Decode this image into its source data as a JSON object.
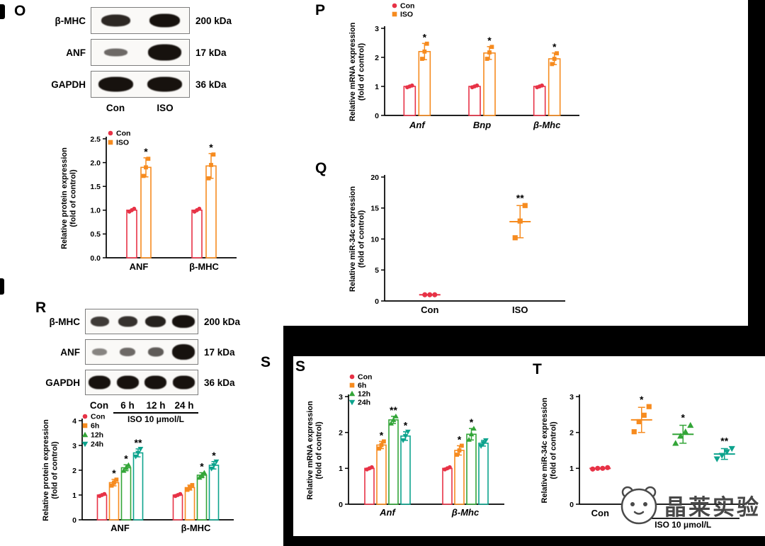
{
  "colors": {
    "con": "#e73246",
    "iso": "#f68b1f",
    "h12": "#33a538",
    "h24": "#0da38d"
  },
  "panels": {
    "O": {
      "label": "O"
    },
    "P": {
      "label": "P"
    },
    "Q": {
      "label": "Q"
    },
    "R": {
      "label": "R"
    },
    "S_outer": {
      "label": "S"
    },
    "S": {
      "label": "S"
    },
    "T": {
      "label": "T"
    }
  },
  "watermark": {
    "text": "晶莱实验"
  },
  "blots": {
    "O": {
      "lanes": [
        "Con",
        "ISO"
      ],
      "rows": [
        {
          "protein": "β-MHC",
          "kda": "200 kDa",
          "bands": [
            {
              "w": 0.6,
              "h": 0.5,
              "d": 0.9
            },
            {
              "w": 0.62,
              "h": 0.55,
              "d": 1.0
            }
          ]
        },
        {
          "protein": "ANF",
          "kda": "17 kDa",
          "bands": [
            {
              "w": 0.48,
              "h": 0.32,
              "d": 0.62
            },
            {
              "w": 0.68,
              "h": 0.66,
              "d": 1.0
            }
          ]
        },
        {
          "protein": "GAPDH",
          "kda": "36 kDa",
          "bands": [
            {
              "w": 0.72,
              "h": 0.62,
              "d": 1.0
            },
            {
              "w": 0.72,
              "h": 0.62,
              "d": 1.0
            }
          ]
        }
      ]
    },
    "R": {
      "lanes": [
        "Con",
        "6 h",
        "12 h",
        "24 h"
      ],
      "treatment": "ISO 10 μmol/L",
      "rows": [
        {
          "protein": "β-MHC",
          "kda": "200 kDa",
          "bands": [
            {
              "w": 0.66,
              "h": 0.42,
              "d": 0.82
            },
            {
              "w": 0.68,
              "h": 0.45,
              "d": 0.86
            },
            {
              "w": 0.74,
              "h": 0.5,
              "d": 0.93
            },
            {
              "w": 0.8,
              "h": 0.56,
              "d": 1.0
            }
          ]
        },
        {
          "protein": "ANF",
          "kda": "17 kDa",
          "bands": [
            {
              "w": 0.52,
              "h": 0.3,
              "d": 0.5
            },
            {
              "w": 0.56,
              "h": 0.36,
              "d": 0.62
            },
            {
              "w": 0.56,
              "h": 0.4,
              "d": 0.68
            },
            {
              "w": 0.82,
              "h": 0.68,
              "d": 1.0
            }
          ]
        },
        {
          "protein": "GAPDH",
          "kda": "36 kDa",
          "bands": [
            {
              "w": 0.78,
              "h": 0.58,
              "d": 1.0
            },
            {
              "w": 0.78,
              "h": 0.58,
              "d": 1.0
            },
            {
              "w": 0.78,
              "h": 0.58,
              "d": 1.0
            },
            {
              "w": 0.78,
              "h": 0.58,
              "d": 1.0
            }
          ]
        }
      ]
    }
  },
  "chart_data": [
    {
      "id": "chartO",
      "type": "bar",
      "ylabel": [
        "Relative protein expression",
        "(fold of control)"
      ],
      "ylim": [
        0,
        2.5
      ],
      "yticks": [
        0,
        0.5,
        1,
        1.5,
        2,
        2.5
      ],
      "ydecimals": 1,
      "categories": [
        "ANF",
        "β-MHC"
      ],
      "categories_italic": false,
      "series": [
        {
          "name": "Con",
          "color": "con",
          "marker": "circle",
          "values": [
            1.0,
            1.0
          ],
          "errors": [
            0,
            0
          ],
          "points": [
            [
              0.97,
              1.0,
              1.03
            ],
            [
              0.97,
              1.0,
              1.03
            ]
          ],
          "sig": [
            "",
            ""
          ]
        },
        {
          "name": "ISO",
          "color": "iso",
          "marker": "square",
          "values": [
            1.9,
            1.93
          ],
          "errors": [
            0.2,
            0.26
          ],
          "points": [
            [
              1.72,
              1.9,
              2.08
            ],
            [
              1.67,
              1.95,
              2.17
            ]
          ],
          "sig": [
            "*",
            "*"
          ]
        }
      ]
    },
    {
      "id": "chartP",
      "type": "bar",
      "ylabel": [
        "Relative mRNA expression",
        "(fold of control)"
      ],
      "ylim": [
        0,
        3
      ],
      "yticks": [
        0,
        1,
        2,
        3
      ],
      "ydecimals": 0,
      "categories": [
        "Anf",
        "Bnp",
        "β-Mhc"
      ],
      "categories_italic": true,
      "series": [
        {
          "name": "Con",
          "color": "con",
          "marker": "circle",
          "values": [
            1,
            1,
            1
          ],
          "errors": [
            0,
            0,
            0
          ],
          "points": [
            [
              0.97,
              1,
              1.03
            ],
            [
              0.97,
              1,
              1.03
            ],
            [
              0.97,
              1,
              1.03
            ]
          ],
          "sig": [
            "",
            "",
            ""
          ]
        },
        {
          "name": "ISO",
          "color": "iso",
          "marker": "square",
          "values": [
            2.2,
            2.15,
            1.95
          ],
          "errors": [
            0.28,
            0.22,
            0.2
          ],
          "points": [
            [
              1.95,
              2.2,
              2.47
            ],
            [
              1.95,
              2.17,
              2.36
            ],
            [
              1.77,
              1.95,
              2.14
            ]
          ],
          "sig": [
            "*",
            "*",
            "*"
          ]
        }
      ]
    },
    {
      "id": "chartQ",
      "type": "scatter",
      "ylabel": [
        "Relative miR-34c expression",
        "(fold of control)"
      ],
      "ylim": [
        0,
        20
      ],
      "yticks": [
        0,
        5,
        10,
        15,
        20
      ],
      "ydecimals": 0,
      "categories": [
        "Con",
        "ISO"
      ],
      "groups": [
        {
          "name": "Con",
          "color": "con",
          "marker": "circle",
          "mean": 1.0,
          "error": 0,
          "points": [
            1.0,
            1.0,
            1.0
          ],
          "sig": ""
        },
        {
          "name": "ISO",
          "color": "iso",
          "marker": "square",
          "mean": 12.8,
          "error": 2.6,
          "points": [
            10.2,
            12.9,
            15.4
          ],
          "sig": "**"
        }
      ]
    },
    {
      "id": "chartR",
      "type": "bar",
      "ylabel": [
        "Relative protein expression",
        "(fold of control)"
      ],
      "ylim": [
        0,
        4
      ],
      "yticks": [
        0,
        1,
        2,
        3,
        4
      ],
      "ydecimals": 0,
      "categories": [
        "ANF",
        "β-MHC"
      ],
      "categories_italic": false,
      "series": [
        {
          "name": "Con",
          "color": "con",
          "marker": "circle",
          "values": [
            1,
            1
          ],
          "errors": [
            0,
            0
          ],
          "points": [
            [
              0.96,
              1,
              1.04
            ],
            [
              0.96,
              1,
              1.04
            ]
          ],
          "sig": [
            "",
            ""
          ]
        },
        {
          "name": "6h",
          "color": "iso",
          "marker": "square",
          "values": [
            1.5,
            1.3
          ],
          "errors": [
            0.13,
            0.1
          ],
          "points": [
            [
              1.38,
              1.5,
              1.62
            ],
            [
              1.21,
              1.3,
              1.4
            ]
          ],
          "sig": [
            "*",
            ""
          ]
        },
        {
          "name": "12h",
          "color": "h12",
          "marker": "triangle",
          "values": [
            2.1,
            1.8
          ],
          "errors": [
            0.12,
            0.1
          ],
          "points": [
            [
              1.98,
              2.1,
              2.21
            ],
            [
              1.7,
              1.8,
              1.9
            ]
          ],
          "sig": [
            "*",
            "*"
          ]
        },
        {
          "name": "24h",
          "color": "h24",
          "marker": "triangle-down",
          "values": [
            2.7,
            2.2
          ],
          "errors": [
            0.16,
            0.15
          ],
          "points": [
            [
              2.55,
              2.7,
              2.86
            ],
            [
              2.06,
              2.2,
              2.35
            ]
          ],
          "sig": [
            "**",
            "*"
          ]
        }
      ]
    },
    {
      "id": "chartS",
      "type": "bar",
      "ylabel": [
        "Relative mRNA expression",
        "(fold of control)"
      ],
      "ylim": [
        0,
        3
      ],
      "yticks": [
        0,
        1,
        2,
        3
      ],
      "ydecimals": 0,
      "categories": [
        "Anf",
        "β-Mhc"
      ],
      "categories_italic": true,
      "series": [
        {
          "name": "Con",
          "color": "con",
          "marker": "circle",
          "values": [
            1,
            1
          ],
          "errors": [
            0,
            0
          ],
          "points": [
            [
              0.97,
              1,
              1.03
            ],
            [
              0.97,
              1,
              1.03
            ]
          ],
          "sig": [
            "",
            ""
          ]
        },
        {
          "name": "6h",
          "color": "iso",
          "marker": "square",
          "values": [
            1.65,
            1.5
          ],
          "errors": [
            0.1,
            0.13
          ],
          "points": [
            [
              1.55,
              1.65,
              1.75
            ],
            [
              1.38,
              1.5,
              1.63
            ]
          ],
          "sig": [
            "*",
            "*"
          ]
        },
        {
          "name": "12h",
          "color": "h12",
          "marker": "triangle",
          "values": [
            2.35,
            1.95
          ],
          "errors": [
            0.1,
            0.16
          ],
          "points": [
            [
              2.25,
              2.35,
              2.45
            ],
            [
              1.8,
              1.95,
              2.11
            ]
          ],
          "sig": [
            "**",
            "*"
          ]
        },
        {
          "name": "24h",
          "color": "h24",
          "marker": "triangle-down",
          "values": [
            1.9,
            1.7
          ],
          "errors": [
            0.12,
            0.08
          ],
          "points": [
            [
              1.78,
              1.9,
              2.02
            ],
            [
              1.62,
              1.7,
              1.78
            ]
          ],
          "sig": [
            "*",
            ""
          ]
        }
      ]
    },
    {
      "id": "chartT",
      "type": "scatter",
      "ylabel": [
        "Relative miR-34c expression",
        "(fold of control)"
      ],
      "ylim": [
        0,
        3
      ],
      "yticks": [
        0,
        1,
        2,
        3
      ],
      "ydecimals": 0,
      "categories": [
        "Con",
        "",
        "",
        ""
      ],
      "xgroup": {
        "label": "ISO 10 μmol/L",
        "from": 1,
        "to": 3
      },
      "groups": [
        {
          "name": "Con",
          "color": "con",
          "marker": "circle",
          "mean": 1.0,
          "error": 0,
          "points": [
            0.98,
            1.0,
            1.0,
            1.02
          ],
          "sig": ""
        },
        {
          "name": "6h",
          "color": "iso",
          "marker": "square",
          "mean": 2.35,
          "error": 0.35,
          "points": [
            2.02,
            2.3,
            2.48,
            2.72
          ],
          "sig": "*"
        },
        {
          "name": "12h",
          "color": "h12",
          "marker": "triangle",
          "mean": 1.95,
          "error": 0.25,
          "points": [
            1.7,
            1.9,
            2.02,
            2.2
          ],
          "sig": "*"
        },
        {
          "name": "24h",
          "color": "h24",
          "marker": "triangle-down",
          "mean": 1.4,
          "error": 0.15,
          "points": [
            1.26,
            1.36,
            1.46,
            1.55
          ],
          "sig": "**"
        }
      ]
    }
  ]
}
